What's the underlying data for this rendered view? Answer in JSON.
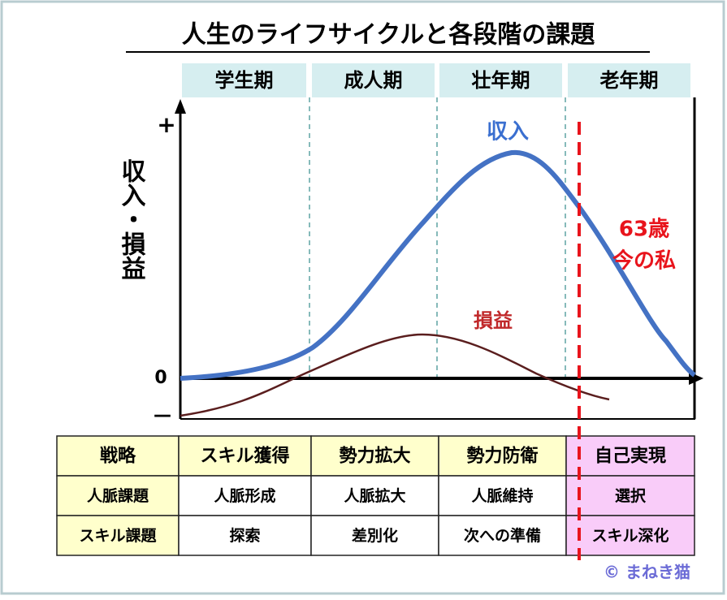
{
  "title": "人生のライフサイクルと各段階の課題",
  "stages": [
    "学生期",
    "成人期",
    "壮年期",
    "老年期"
  ],
  "axis": {
    "label": "収入・損益",
    "plus": "+",
    "zero": "0",
    "minus": "—"
  },
  "curve_labels": {
    "income": "収入",
    "profit": "損益"
  },
  "annotation": [
    "63歳",
    "今の私"
  ],
  "table": {
    "rows": [
      [
        "戦略",
        "スキル獲得",
        "勢力拡大",
        "勢力防衛",
        "自己実現"
      ],
      [
        "人脈課題",
        "人脈形成",
        "人脈拡大",
        "人脈維持",
        "選択"
      ],
      [
        "スキル課題",
        "探索",
        "差別化",
        "次への準備",
        "スキル深化"
      ]
    ]
  },
  "credit": "© まねき猫"
}
